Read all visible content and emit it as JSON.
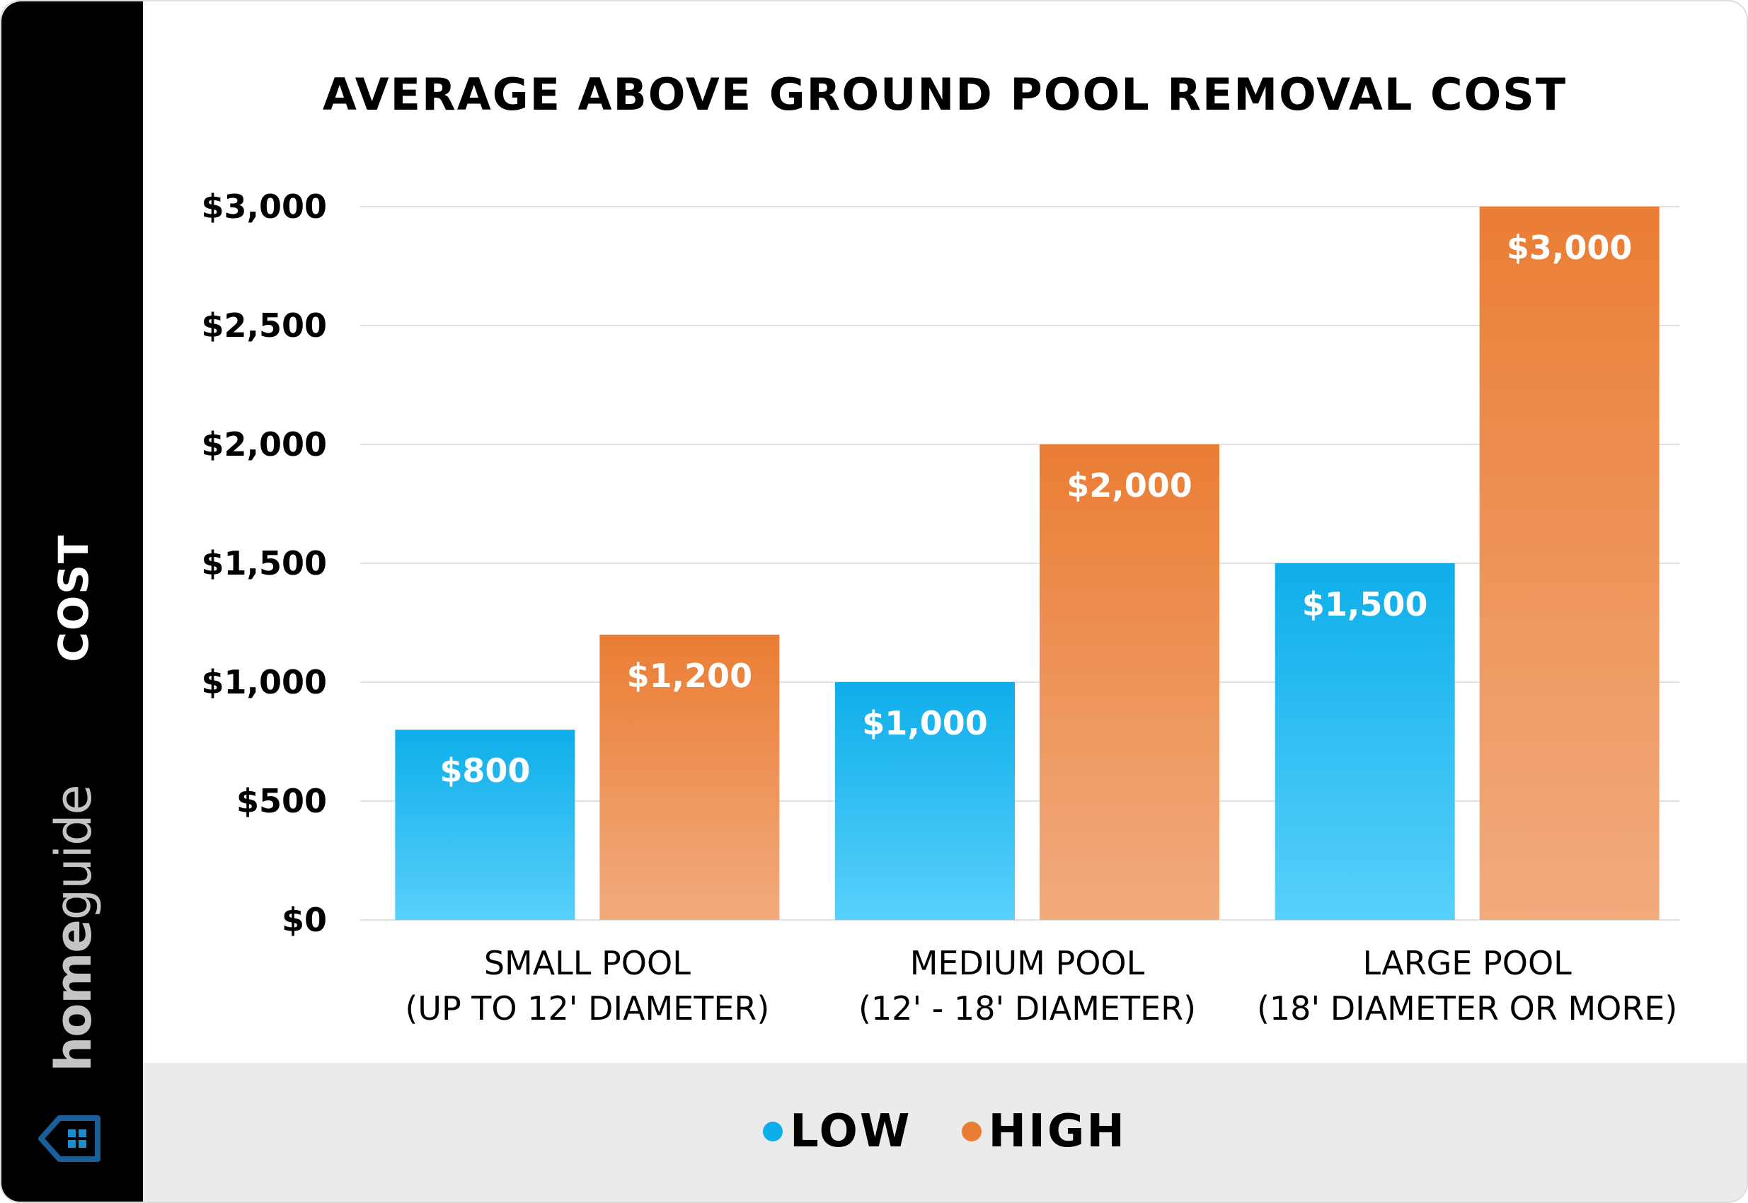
{
  "chart_data": {
    "type": "bar",
    "title": "AVERAGE ABOVE GROUND POOL REMOVAL COST",
    "ylabel": "COST",
    "xlabel": "",
    "categories": [
      [
        "SMALL POOL",
        "(UP TO 12' DIAMETER)"
      ],
      [
        "MEDIUM POOL",
        "(12' - 18' DIAMETER)"
      ],
      [
        "LARGE POOL",
        "(18' DIAMETER OR MORE)"
      ]
    ],
    "series": [
      {
        "name": "LOW",
        "values": [
          800,
          1000,
          1500
        ],
        "labels": [
          "$800",
          "$1,000",
          "$1,500"
        ],
        "color": "#0eaeea",
        "color_light": "#58d0fb"
      },
      {
        "name": "HIGH",
        "values": [
          1200,
          2000,
          3000
        ],
        "labels": [
          "$1,200",
          "$2,000",
          "$3,000"
        ],
        "color": "#ea7d34",
        "color_light": "#f2ab7e"
      }
    ],
    "ylim": [
      0,
      3000
    ],
    "yticks": [
      0,
      500,
      1000,
      1500,
      2000,
      2500,
      3000
    ],
    "ytick_labels": [
      "$0",
      "$500",
      "$1,000",
      "$1,500",
      "$2,000",
      "$2,500",
      "$3,000"
    ],
    "grid": true,
    "legend_position": "bottom"
  },
  "brand": {
    "logo_text_bold": "home",
    "logo_text_light": "guide",
    "icon": "house-icon",
    "icon_color": "#1a5f99"
  }
}
